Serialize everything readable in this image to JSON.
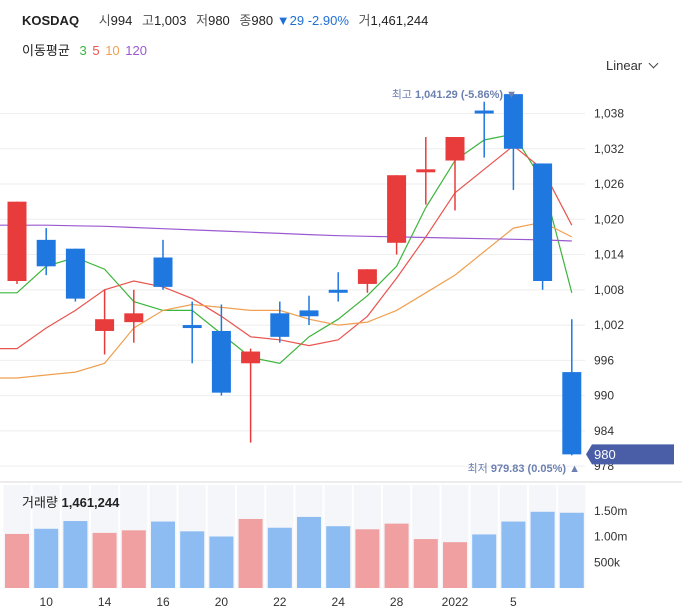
{
  "header": {
    "symbol": "KOSDAQ",
    "open_label": "시",
    "open_value": "994",
    "high_label": "고",
    "high_value": "1,003",
    "low_label": "저",
    "low_value": "980",
    "close_label": "종",
    "close_value": "980",
    "change_arrow": "▼",
    "change_value": "29",
    "change_pct": "-2.90%",
    "volume_label": "거",
    "volume_value": "1,461,244"
  },
  "ma_legend": {
    "title": "이동평균",
    "periods": [
      {
        "label": "3",
        "color": "#3cb53c"
      },
      {
        "label": "5",
        "color": "#e8544f"
      },
      {
        "label": "10",
        "color": "#f0a050"
      },
      {
        "label": "120",
        "color": "#9b59d0"
      }
    ]
  },
  "scale": {
    "label": "Linear",
    "icon": "chevron-down-icon"
  },
  "colors": {
    "up": "#e83c3c",
    "down": "#1f78e0",
    "up_vol": "#f0a0a0",
    "down_vol": "#8cbcf2",
    "badge": "#4a5ea8"
  },
  "chart_data": {
    "type": "candlestick",
    "price_axis": {
      "ticks": [
        "1,038",
        "1,032",
        "1,026",
        "1,020",
        "1,014",
        "1,008",
        "1,002",
        "996",
        "990",
        "984",
        "978"
      ],
      "tick_values": [
        1038,
        1032,
        1026,
        1020,
        1014,
        1008,
        1002,
        996,
        990,
        984,
        978
      ],
      "ylim": [
        977,
        1042
      ]
    },
    "x_labels": [
      "10",
      "14",
      "16",
      "20",
      "22",
      "24",
      "28",
      "2022",
      "5"
    ],
    "x_label_positions": [
      1,
      3,
      5,
      7,
      9,
      11,
      13,
      15,
      17
    ],
    "candles": [
      {
        "o": 1009.5,
        "h": 1023.0,
        "l": 1009.0,
        "c": 1023.0
      },
      {
        "o": 1016.5,
        "h": 1018.5,
        "l": 1010.5,
        "c": 1012.0
      },
      {
        "o": 1015.0,
        "h": 1015.0,
        "l": 1006.0,
        "c": 1006.5
      },
      {
        "o": 1001.0,
        "h": 1008.0,
        "l": 997.0,
        "c": 1003.0
      },
      {
        "o": 1002.5,
        "h": 1008.0,
        "l": 999.0,
        "c": 1004.0
      },
      {
        "o": 1013.5,
        "h": 1016.5,
        "l": 1008.0,
        "c": 1008.5
      },
      {
        "o": 1002.0,
        "h": 1006.0,
        "l": 995.5,
        "c": 1001.5
      },
      {
        "o": 1001.0,
        "h": 1005.5,
        "l": 990.0,
        "c": 990.5
      },
      {
        "o": 995.5,
        "h": 998.0,
        "l": 982.0,
        "c": 997.5
      },
      {
        "o": 1004.0,
        "h": 1006.0,
        "l": 999.0,
        "c": 1000.0
      },
      {
        "o": 1004.5,
        "h": 1007.0,
        "l": 1002.0,
        "c": 1003.5
      },
      {
        "o": 1008.0,
        "h": 1011.0,
        "l": 1006.0,
        "c": 1007.5
      },
      {
        "o": 1009.0,
        "h": 1011.5,
        "l": 1007.5,
        "c": 1011.5
      },
      {
        "o": 1016.0,
        "h": 1027.5,
        "l": 1014.0,
        "c": 1027.5
      },
      {
        "o": 1028.0,
        "h": 1034.0,
        "l": 1022.5,
        "c": 1028.5
      },
      {
        "o": 1030.0,
        "h": 1034.0,
        "l": 1021.5,
        "c": 1034.0
      },
      {
        "o": 1038.5,
        "h": 1040.0,
        "l": 1030.5,
        "c": 1038.0
      },
      {
        "o": 1041.3,
        "h": 1041.3,
        "l": 1025.0,
        "c": 1032.0
      },
      {
        "o": 1029.5,
        "h": 1029.5,
        "l": 1008.0,
        "c": 1009.5
      },
      {
        "o": 994.0,
        "h": 1003.0,
        "l": 979.83,
        "c": 980.0
      }
    ],
    "ma": [
      {
        "period": "3",
        "color": "#3cb53c",
        "values": [
          1007.5,
          1012.0,
          1013.5,
          1011.5,
          1006.0,
          1004.5,
          1004.5,
          1000.5,
          996.5,
          995.5,
          1000.0,
          1003.0,
          1007.0,
          1012.0,
          1022.0,
          1030.0,
          1033.5,
          1034.5,
          1026.5,
          1007.5
        ]
      },
      {
        "period": "5",
        "color": "#e8544f",
        "values": [
          998.0,
          1001.5,
          1004.5,
          1008.0,
          1009.5,
          1008.5,
          1006.5,
          1003.5,
          1000.0,
          999.5,
          998.5,
          999.5,
          1003.5,
          1010.0,
          1017.0,
          1024.5,
          1028.5,
          1032.5,
          1028.5,
          1019.0
        ]
      },
      {
        "period": "10",
        "color": "#f0a050",
        "values": [
          993.0,
          993.5,
          994.0,
          995.5,
          1001.5,
          1004.5,
          1005.5,
          1005.0,
          1004.5,
          1004.5,
          1003.0,
          1002.0,
          1002.5,
          1004.5,
          1007.5,
          1010.5,
          1014.5,
          1018.5,
          1019.5,
          1017.0
        ]
      },
      {
        "period": "120",
        "color": "#9b59d0",
        "values": [
          1019.0,
          1019.0,
          1018.9,
          1018.8,
          1018.6,
          1018.4,
          1018.2,
          1018.0,
          1017.8,
          1017.6,
          1017.4,
          1017.2,
          1017.1,
          1017.0,
          1016.9,
          1016.8,
          1016.7,
          1016.6,
          1016.5,
          1016.3
        ]
      }
    ],
    "volume": {
      "title": "거래량",
      "value": "1,461,244",
      "ticks": [
        "1.50m",
        "1.00m",
        "500k"
      ],
      "tick_values": [
        1500000,
        1000000,
        500000
      ],
      "ylim": [
        0,
        2000000
      ],
      "values": [
        1050000,
        1150000,
        1300000,
        1070000,
        1120000,
        1290000,
        1100000,
        1000000,
        1340000,
        1170000,
        1380000,
        1200000,
        1140000,
        1250000,
        950000,
        890000,
        1040000,
        1290000,
        1480000,
        1461244
      ]
    },
    "annotations": {
      "high": {
        "label": "최고",
        "value": "1,041.29 (-5.86%)",
        "arrow": "▼"
      },
      "low": {
        "label": "최저",
        "value": "979.83 (0.05%)",
        "arrow": "▲"
      },
      "last_price_badge": "980"
    }
  }
}
